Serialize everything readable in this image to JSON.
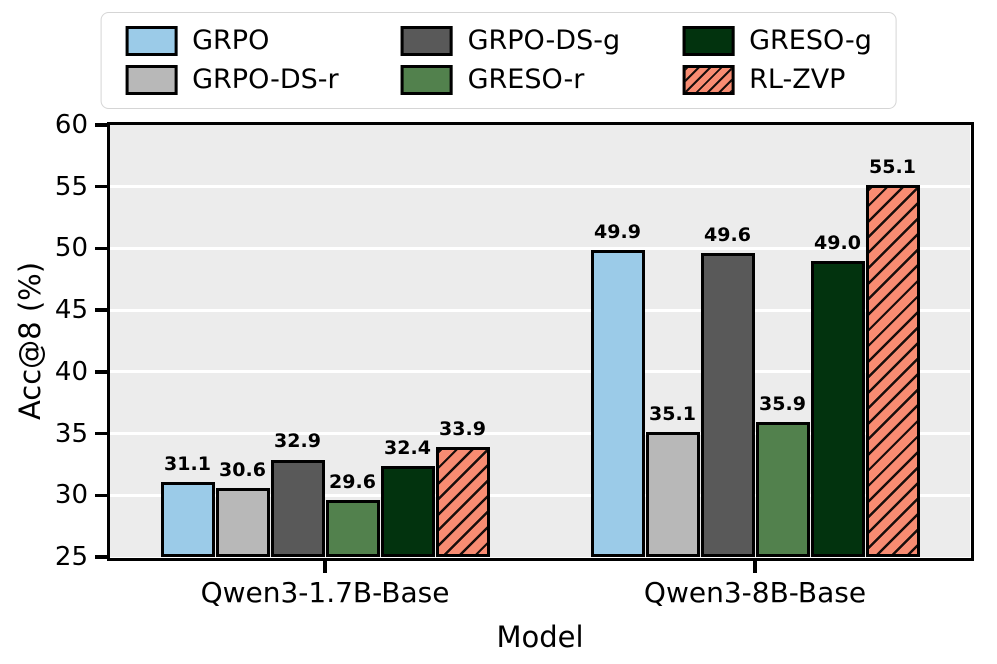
{
  "figure": {
    "background": "#FFFFFF",
    "plot_background": "#ECECEC",
    "grid_color": "#FFFFFF",
    "spine_color": "#000000",
    "legend_border_color": "#D5D5D5",
    "bar_edge_color": "#000000"
  },
  "chart_data": {
    "type": "bar",
    "title": "",
    "xlabel": "Model",
    "ylabel": "Acc@8 (%)",
    "ylim": [
      25,
      60
    ],
    "yticks": [
      25,
      30,
      35,
      40,
      45,
      50,
      55,
      60
    ],
    "categories": [
      "Qwen3-1.7B-Base",
      "Qwen3-8B-Base"
    ],
    "series": [
      {
        "name": "GRPO",
        "color": "#9BCBE8",
        "hatch": false,
        "values": [
          31.1,
          49.9
        ]
      },
      {
        "name": "GRPO-DS-r",
        "color": "#B8B8B8",
        "hatch": false,
        "values": [
          30.6,
          35.1
        ]
      },
      {
        "name": "GRPO-DS-g",
        "color": "#595959",
        "hatch": false,
        "values": [
          32.9,
          49.6
        ]
      },
      {
        "name": "GRESO-r",
        "color": "#52814D",
        "hatch": false,
        "values": [
          29.6,
          35.9
        ]
      },
      {
        "name": "GRESO-g",
        "color": "#02330E",
        "hatch": false,
        "values": [
          32.4,
          49.0
        ]
      },
      {
        "name": "RL-ZVP",
        "color": "#F88C72",
        "hatch": true,
        "values": [
          33.9,
          55.1
        ]
      }
    ],
    "bar_value_labels": [
      [
        "31.1",
        "30.6",
        "32.9",
        "29.6",
        "32.4",
        "33.9"
      ],
      [
        "49.9",
        "35.1",
        "49.6",
        "35.9",
        "49.0",
        "55.1"
      ]
    ],
    "grid": true,
    "legend_position": "top",
    "legend_columns": 3
  }
}
